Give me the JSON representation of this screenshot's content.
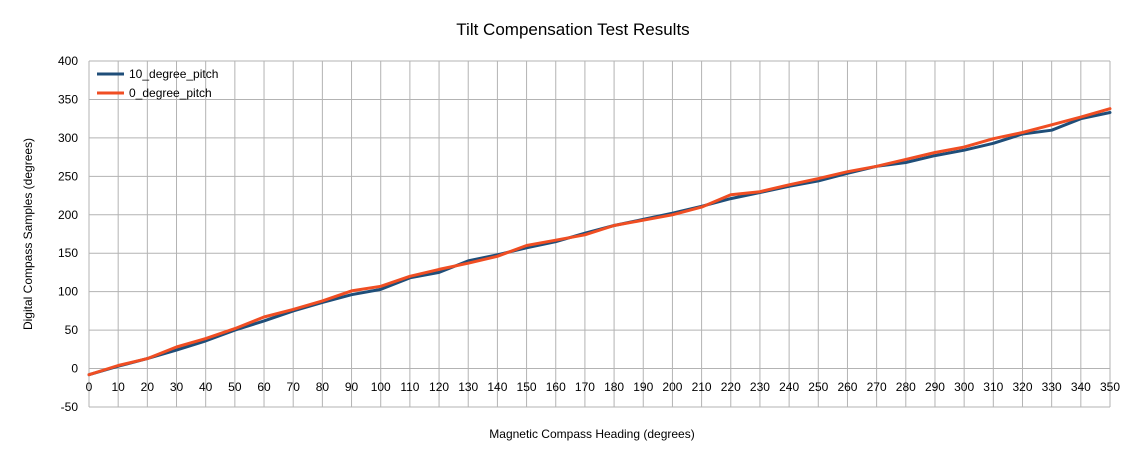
{
  "chart_data": {
    "type": "line",
    "title": "Tilt Compensation Test Results",
    "xlabel": "Magnetic Compass Heading (degrees)",
    "ylabel": "Digital Compass Samples (degrees)",
    "xlim": [
      0,
      350
    ],
    "ylim": [
      -50,
      400
    ],
    "x_ticks": [
      "0",
      "10",
      "20",
      "30",
      "40",
      "50",
      "60",
      "70",
      "80",
      "90",
      "100",
      "110",
      "120",
      "130",
      "140",
      "150",
      "160",
      "170",
      "180",
      "190",
      "200",
      "210",
      "220",
      "230",
      "240",
      "250",
      "260",
      "270",
      "280",
      "290",
      "300",
      "310",
      "320",
      "330",
      "340",
      "350"
    ],
    "y_ticks": [
      "-50",
      "0",
      "50",
      "100",
      "150",
      "200",
      "250",
      "300",
      "350",
      "400"
    ],
    "grid": true,
    "legend_position": "top-left",
    "x": [
      0,
      10,
      20,
      30,
      40,
      50,
      60,
      70,
      80,
      90,
      100,
      110,
      120,
      130,
      140,
      150,
      160,
      170,
      180,
      190,
      200,
      210,
      220,
      230,
      240,
      250,
      260,
      270,
      280,
      290,
      300,
      310,
      320,
      330,
      340,
      350
    ],
    "series": [
      {
        "name": "10_degree_pitch",
        "color": "#1f4e79",
        "values": [
          -8,
          3,
          13,
          24,
          36,
          50,
          62,
          75,
          86,
          96,
          103,
          118,
          125,
          140,
          148,
          157,
          165,
          176,
          186,
          194,
          202,
          211,
          221,
          229,
          237,
          244,
          254,
          263,
          268,
          277,
          284,
          293,
          305,
          310,
          325,
          333
        ]
      },
      {
        "name": "0_degree_pitch",
        "color": "#f04e23",
        "values": [
          -8,
          4,
          13,
          28,
          39,
          52,
          67,
          77,
          88,
          101,
          107,
          120,
          129,
          137,
          146,
          160,
          167,
          174,
          186,
          193,
          200,
          210,
          226,
          230,
          239,
          247,
          256,
          263,
          272,
          281,
          288,
          299,
          307,
          317,
          327,
          338
        ]
      }
    ]
  }
}
